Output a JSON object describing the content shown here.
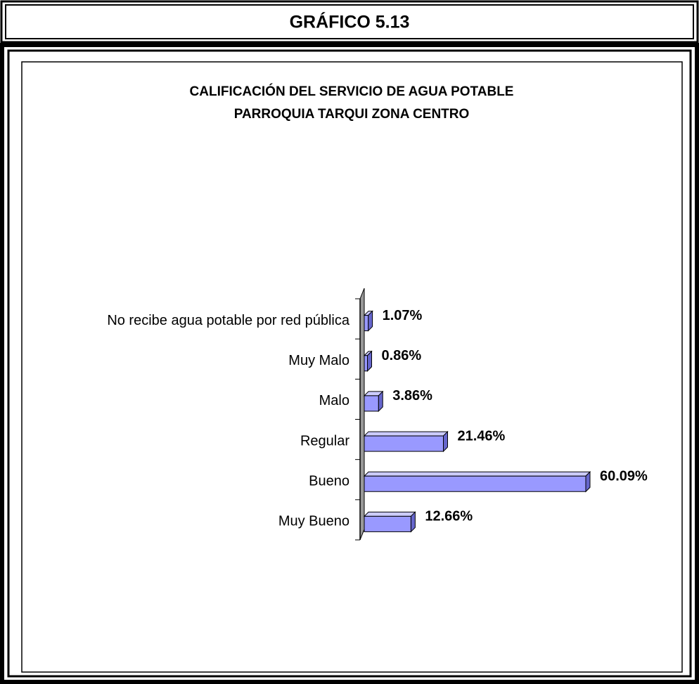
{
  "header": "GRÁFICO 5.13",
  "chart_data": {
    "type": "bar3d_horizontal",
    "title": "CALIFICACIÓN DEL SERVICIO DE AGUA POTABLE",
    "subtitle": "PARROQUIA TARQUI ZONA CENTRO",
    "categories": [
      "No recibe agua potable por red pública",
      "Muy Malo",
      "Malo",
      "Regular",
      "Bueno",
      "Muy Bueno"
    ],
    "values": [
      1.07,
      0.86,
      3.86,
      21.46,
      60.09,
      12.66
    ],
    "value_labels": [
      "1.07%",
      "0.86%",
      "3.86%",
      "21.46%",
      "60.09%",
      "12.66%"
    ],
    "color": "#9999ff"
  }
}
